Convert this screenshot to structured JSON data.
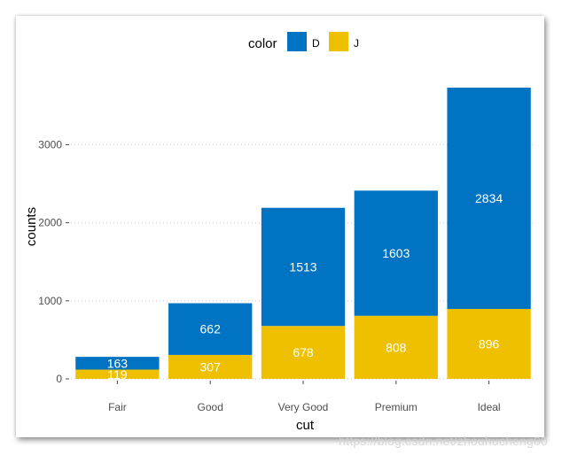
{
  "chart_data": {
    "type": "bar",
    "stacked": true,
    "categories": [
      "Fair",
      "Good",
      "Very Good",
      "Premium",
      "Ideal"
    ],
    "series": [
      {
        "name": "J",
        "color": "#EFC000",
        "values": [
          119,
          307,
          678,
          808,
          896
        ]
      },
      {
        "name": "D",
        "color": "#0073C2",
        "values": [
          163,
          662,
          1513,
          1603,
          2834
        ]
      }
    ],
    "legend_title": "color",
    "legend_order": [
      "D",
      "J"
    ],
    "legend_position": "top",
    "xlabel": "cut",
    "ylabel": "counts",
    "ylim": [
      0,
      3730
    ],
    "yticks": [
      0,
      1000,
      2000,
      3000
    ],
    "grid": "horizontal-dotted"
  },
  "watermark": "https://blog.csdn.net/zhouhucheng00"
}
